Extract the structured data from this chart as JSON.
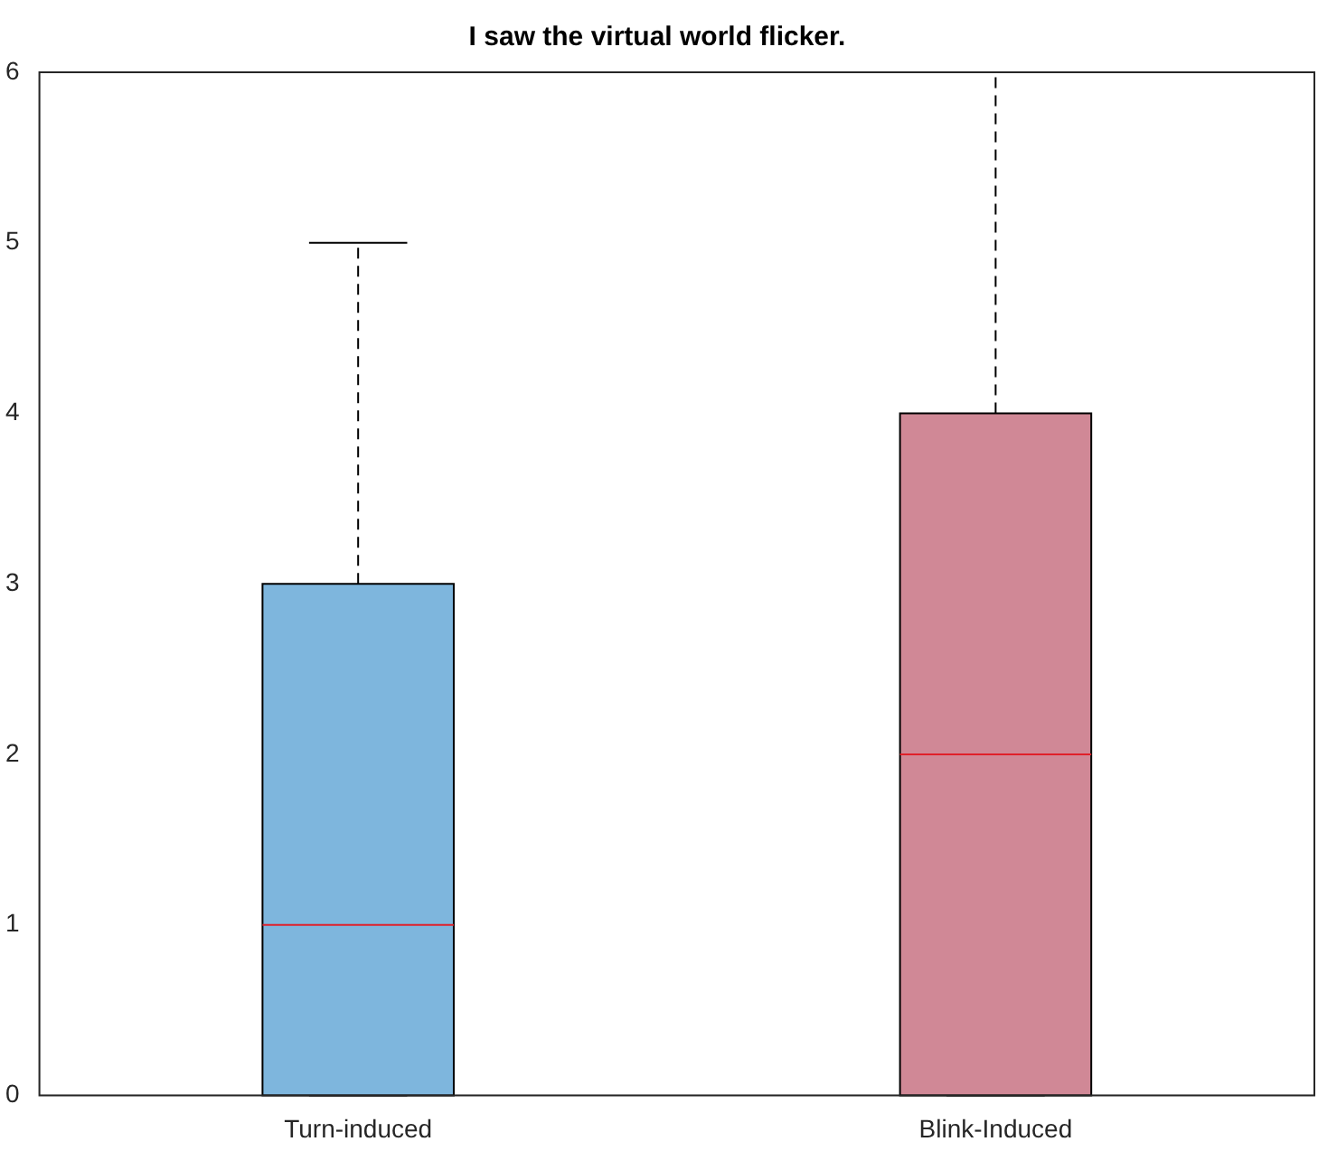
{
  "chart_data": {
    "type": "box",
    "title": "I saw the virtual world flicker.",
    "categories": [
      "Turn-induced",
      "Blink-Induced"
    ],
    "colors": [
      "#7eb6dd",
      "#d08896"
    ],
    "boxes": [
      {
        "low": 0,
        "q1": 0,
        "median": 1,
        "q3": 3,
        "high": 5
      },
      {
        "low": 0,
        "q1": 0,
        "median": 2,
        "q3": 4,
        "high": 6
      }
    ],
    "ylim": [
      0,
      6
    ],
    "yticks": [
      0,
      1,
      2,
      3,
      4,
      5,
      6
    ],
    "grid": false,
    "legend": false
  }
}
